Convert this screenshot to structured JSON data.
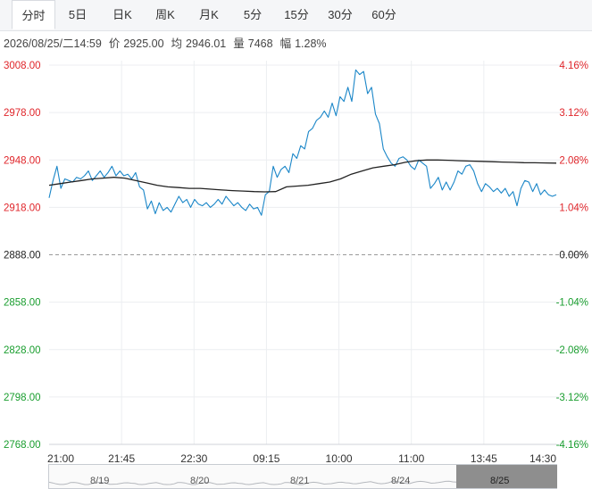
{
  "tabs": [
    {
      "label": "分时",
      "active": true
    },
    {
      "label": "5日",
      "active": false
    },
    {
      "label": "日K",
      "active": false
    },
    {
      "label": "周K",
      "active": false
    },
    {
      "label": "月K",
      "active": false
    },
    {
      "label": "5分",
      "active": false
    },
    {
      "label": "15分",
      "active": false
    },
    {
      "label": "30分",
      "active": false
    },
    {
      "label": "60分",
      "active": false
    }
  ],
  "info": {
    "datetime": "2026/08/25/二14:59",
    "price_label": "价",
    "price": "2925.00",
    "avg_label": "均",
    "avg": "2946.01",
    "vol_label": "量",
    "vol": "7468",
    "amp_label": "幅",
    "amp": "1.28%"
  },
  "colors": {
    "up": "#e0262b",
    "down": "#1a9e2f",
    "neutral": "#222222",
    "price_line": "#1a86c8",
    "avg_line": "#222222"
  },
  "chart_data": {
    "type": "line",
    "x_ticks": [
      "21:00",
      "21:45",
      "22:30",
      "09:15",
      "10:00",
      "11:00",
      "13:45",
      "14:30"
    ],
    "y_ticks": [
      "3008.00",
      "2978.00",
      "2948.00",
      "2918.00",
      "2888.00",
      "2858.00",
      "2828.00",
      "2798.00",
      "2768.00"
    ],
    "pct_ticks": [
      "4.16%",
      "3.12%",
      "2.08%",
      "1.04%",
      "0.00%",
      "-1.04%",
      "-2.08%",
      "-3.12%",
      "-4.16%"
    ],
    "ylim": [
      2768,
      3008
    ],
    "prev_close": 2888,
    "series": [
      {
        "values": [
          2924,
          2935,
          2944,
          2930,
          2936,
          2935,
          2934,
          2937,
          2936,
          2938,
          2941,
          2935,
          2938,
          2941,
          2937,
          2940,
          2944,
          2938,
          2941,
          2938,
          2939,
          2936,
          2940,
          2931,
          2929,
          2917,
          2922,
          2914,
          2921,
          2916,
          2918,
          2915,
          2920,
          2925,
          2921,
          2923,
          2918,
          2923,
          2920,
          2919,
          2921,
          2918,
          2920,
          2923,
          2920,
          2925,
          2922,
          2919,
          2921,
          2918,
          2916,
          2920,
          2917,
          2918,
          2913,
          2926,
          2928,
          2944,
          2937,
          2942,
          2944,
          2940,
          2952,
          2949,
          2957,
          2955,
          2966,
          2968,
          2973,
          2975,
          2979,
          2975,
          2984,
          2976,
          2988,
          2985,
          2994,
          2985,
          3005,
          3002,
          3004,
          2990,
          2994,
          2977,
          2971,
          2955,
          2950,
          2946,
          2944,
          2949,
          2950,
          2948,
          2944,
          2942,
          2948,
          2946,
          2944,
          2930,
          2933,
          2937,
          2929,
          2934,
          2929,
          2934,
          2941,
          2939,
          2944,
          2945,
          2941,
          2933,
          2928,
          2933,
          2931,
          2928,
          2930,
          2927,
          2930,
          2925,
          2928,
          2919,
          2930,
          2935,
          2934,
          2928,
          2933,
          2926,
          2929,
          2926,
          2925,
          2926
        ]
      },
      {
        "values": [
          2932,
          2933,
          2934,
          2935,
          2936,
          2936.5,
          2937,
          2936.5,
          2935,
          2933.5,
          2932,
          2931,
          2930.5,
          2930,
          2930,
          2929.5,
          2929,
          2928.6,
          2928.3,
          2928,
          2927.8,
          2928,
          2931,
          2931.5,
          2932,
          2933,
          2934,
          2936,
          2939,
          2941,
          2943,
          2944,
          2945,
          2946.5,
          2947.5,
          2948,
          2948,
          2947.8,
          2947.5,
          2947.3,
          2947.1,
          2946.9,
          2946.7,
          2946.5,
          2946.3,
          2946.2,
          2946.1,
          2946
        ]
      }
    ]
  },
  "navigator": {
    "labels": [
      "8/19",
      "8/20",
      "8/21",
      "8/24",
      "8/25"
    ]
  }
}
